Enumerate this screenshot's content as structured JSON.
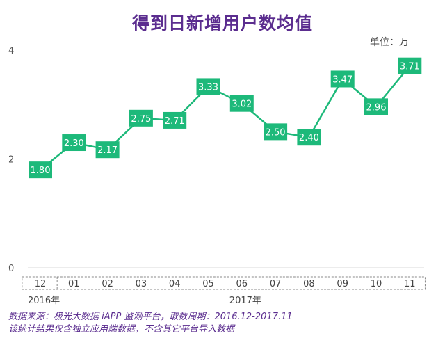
{
  "chart_data": {
    "type": "line",
    "title": "得到日新增用户数均值",
    "unit_label": "单位：万",
    "categories": [
      "12",
      "01",
      "02",
      "03",
      "04",
      "05",
      "06",
      "07",
      "08",
      "09",
      "10",
      "11"
    ],
    "year_labels": [
      {
        "text": "2016年",
        "category_index": 0
      },
      {
        "text": "2017年",
        "category_index": 6
      }
    ],
    "series": [
      {
        "values": [
          1.8,
          2.3,
          2.17,
          2.75,
          2.71,
          3.33,
          3.02,
          2.5,
          2.4,
          3.47,
          2.96,
          3.71
        ]
      }
    ],
    "data_labels": [
      "1.80",
      "2.30",
      "2.17",
      "2.75",
      "2.71",
      "3.33",
      "3.02",
      "2.50",
      "2.40",
      "3.47",
      "2.96",
      "3.71"
    ],
    "y_ticks": [
      0,
      2,
      4
    ],
    "ylim": [
      0,
      4
    ],
    "grid": false,
    "colors": {
      "line": "#1db97a",
      "marker": "#1db97a",
      "marker_text": "#ffffff",
      "title": "#5b2d8f"
    }
  },
  "footer": {
    "source_line": "数据来源：极光大数据 iAPP 监测平台，取数周期：2016.12-2017.11",
    "note_line": "该统计结果仅含独立应用端数据，不含其它平台导入数据"
  }
}
